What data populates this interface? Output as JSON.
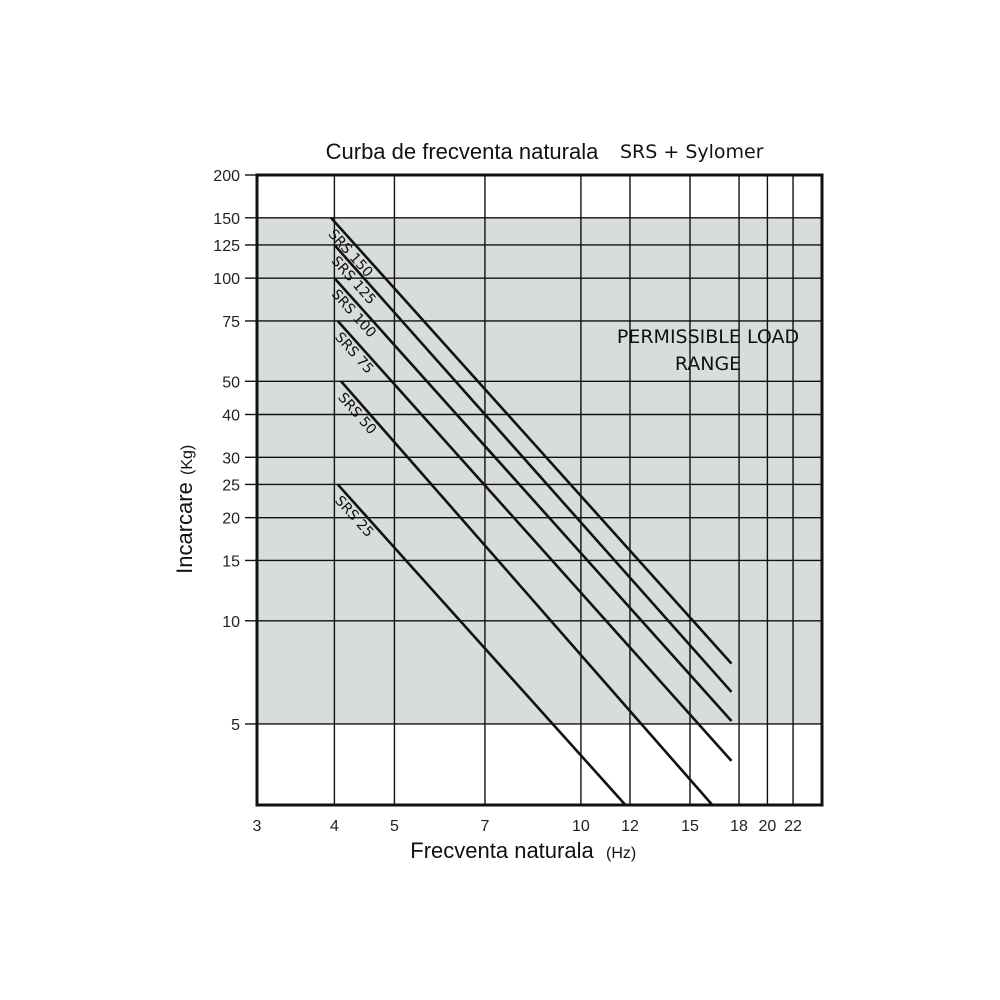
{
  "chart_data": {
    "type": "line",
    "title": "Curba de frecventa naturala",
    "subtitle": "SRS + Sylomer",
    "xlabel": "Frecventa naturala",
    "xunit": "(Hz)",
    "ylabel": "Incarcare",
    "yunit": "(Kg)",
    "x_scale": "log",
    "y_scale": "log",
    "xlim": [
      3,
      24.5
    ],
    "ylim": [
      2.9,
      200
    ],
    "x_ticks": [
      3,
      4,
      5,
      7,
      10,
      12,
      15,
      18,
      20,
      22
    ],
    "y_ticks": [
      5,
      10,
      15,
      20,
      25,
      30,
      40,
      50,
      75,
      100,
      125,
      150,
      200
    ],
    "grid": true,
    "shaded_region": {
      "y_range": [
        5,
        150
      ],
      "color": "#d9dcdd",
      "label_lines": [
        "PERMISSIBLE LOAD",
        "RANGE"
      ]
    },
    "series": [
      {
        "name": "SRS 150",
        "points": [
          [
            3.95,
            150
          ],
          [
            17.5,
            7.5
          ]
        ]
      },
      {
        "name": "SRS 125",
        "points": [
          [
            4.0,
            125
          ],
          [
            17.5,
            6.2
          ]
        ]
      },
      {
        "name": "SRS 100",
        "points": [
          [
            4.0,
            100
          ],
          [
            17.5,
            5.1
          ]
        ]
      },
      {
        "name": "SRS 75",
        "points": [
          [
            4.05,
            75
          ],
          [
            17.5,
            3.9
          ]
        ]
      },
      {
        "name": "SRS 50",
        "points": [
          [
            4.1,
            50
          ],
          [
            16.3,
            2.9
          ]
        ]
      },
      {
        "name": "SRS 25",
        "points": [
          [
            4.05,
            25
          ],
          [
            11.8,
            2.9
          ]
        ]
      }
    ],
    "line_color": "#111111"
  }
}
